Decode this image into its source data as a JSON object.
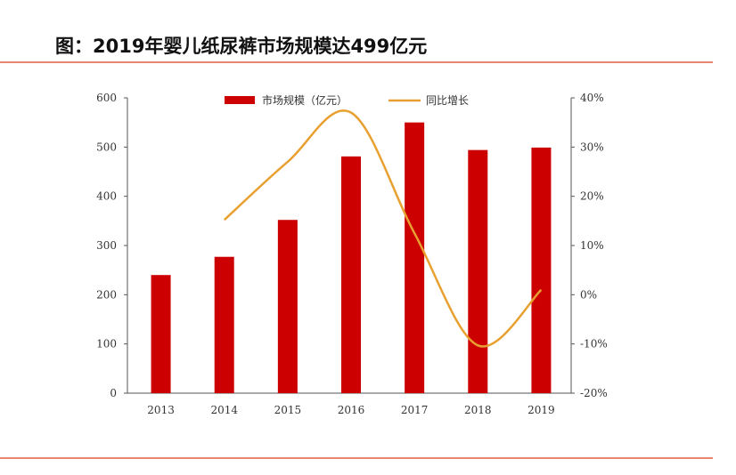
{
  "title": "图：2019年婴儿纸尿裤市场规模达499亿元",
  "chart_data": {
    "type": "bar+line",
    "title": "图：2019年婴儿纸尿裤市场规模达499亿元",
    "categories": [
      "2013",
      "2014",
      "2015",
      "2016",
      "2017",
      "2018",
      "2019"
    ],
    "series": [
      {
        "name": "市场规模（亿元）",
        "type": "bar",
        "axis": "left",
        "color": "#cc0000",
        "values": [
          240,
          277,
          352,
          481,
          550,
          494,
          499
        ]
      },
      {
        "name": "同比增长",
        "type": "line",
        "axis": "right",
        "color": "#e8a030",
        "values": [
          null,
          15.2,
          27,
          37,
          12.5,
          -10.3,
          1
        ]
      }
    ],
    "yleft": {
      "ylim": [
        0,
        600
      ],
      "ticks": [
        "0",
        "100",
        "200",
        "300",
        "400",
        "500",
        "600"
      ]
    },
    "yright": {
      "ylim": [
        -20,
        40
      ],
      "ticks": [
        "-20%",
        "-10%",
        "0%",
        "10%",
        "20%",
        "30%",
        "40%"
      ]
    },
    "legend": "top"
  }
}
